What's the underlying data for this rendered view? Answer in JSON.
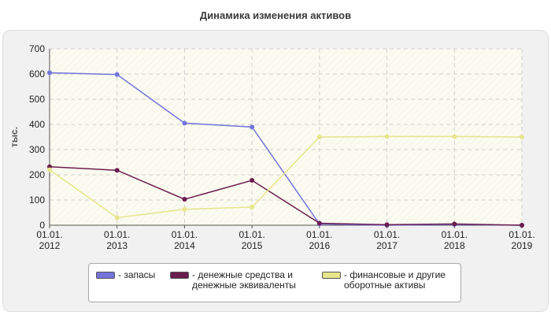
{
  "chart_data": {
    "type": "line",
    "title": "Динамика изменения активов",
    "ylabel": "тыс.",
    "xlabel": "",
    "ylim": [
      0,
      700
    ],
    "yticks": [
      0,
      100,
      200,
      300,
      400,
      500,
      600,
      700
    ],
    "categories": [
      [
        "01.01.",
        "2012"
      ],
      [
        "01.01.",
        "2013"
      ],
      [
        "01.01.",
        "2014"
      ],
      [
        "01.01.",
        "2015"
      ],
      [
        "01.01.",
        "2016"
      ],
      [
        "01.01.",
        "2017"
      ],
      [
        "01.01.",
        "2018"
      ],
      [
        "01.01.",
        "2019"
      ]
    ],
    "grid": true,
    "legend_position": "bottom",
    "series": [
      {
        "name": "- запасы",
        "name_lines": [
          "- запасы"
        ],
        "color": "#7373dc",
        "values": [
          605,
          598,
          405,
          390,
          5,
          0,
          3,
          0
        ]
      },
      {
        "name": "- денежные средства и денежные эквиваленты",
        "name_lines": [
          "- денежные средства и",
          "денежные эквиваленты"
        ],
        "color": "#6b1c4e",
        "values": [
          232,
          218,
          103,
          178,
          8,
          2,
          5,
          0
        ]
      },
      {
        "name": "- финансовые и другие оборотные активы",
        "name_lines": [
          "- финансовые и другие",
          "оборотные активы"
        ],
        "color": "#e6e68c",
        "values": [
          220,
          30,
          63,
          72,
          350,
          352,
          352,
          350
        ]
      }
    ]
  }
}
